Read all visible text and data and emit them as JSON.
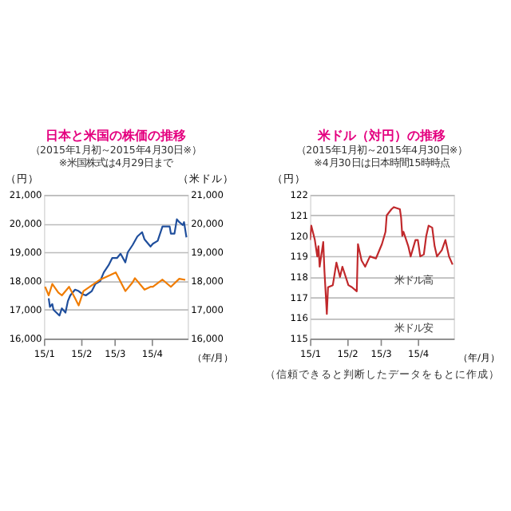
{
  "chart_data": [
    {
      "type": "line",
      "title": "日本と米国の株価の推移",
      "subtitle": "（2015年1月初～2015年4月30日※）",
      "annotations": [
        "※米国株式は4月29日まで"
      ],
      "ylabel": "（円）",
      "y2label": "（米ドル）",
      "xlabel": "（年/月）",
      "grid": "y",
      "xlim": [
        "2015-01-01",
        "2015-05-01"
      ],
      "xticks": [
        {
          "value": "2015-01-01",
          "label": "15/1"
        },
        {
          "value": "2015-02-01",
          "label": "15/2"
        },
        {
          "value": "2015-03-01",
          "label": "15/3"
        },
        {
          "value": "2015-04-01",
          "label": "15/4"
        }
      ],
      "ylim": [
        16000,
        21000
      ],
      "yticks": [
        {
          "value": 16000,
          "label": "16,000"
        },
        {
          "value": 17000,
          "label": "17,000"
        },
        {
          "value": 18000,
          "label": "18,000"
        },
        {
          "value": 19000,
          "label": "19,000"
        },
        {
          "value": 20000,
          "label": "20,000"
        },
        {
          "value": 21000,
          "label": "21,000"
        }
      ],
      "y2lim": [
        16000,
        21000
      ],
      "y2ticks": [
        {
          "value": 16000,
          "label": "16,000"
        },
        {
          "value": 17000,
          "label": "17,000"
        },
        {
          "value": 18000,
          "label": "18,000"
        },
        {
          "value": 19000,
          "label": "19,000"
        },
        {
          "value": 20000,
          "label": "20,000"
        },
        {
          "value": 21000,
          "label": "21,000"
        }
      ],
      "series": [
        {
          "color": "#1f4e9c",
          "x": [
            "2015-01-05",
            "2015-01-06",
            "2015-01-08",
            "2015-01-09",
            "2015-01-14",
            "2015-01-16",
            "2015-01-19",
            "2015-01-21",
            "2015-01-23",
            "2015-01-27",
            "2015-01-30",
            "2015-02-02",
            "2015-02-05",
            "2015-02-10",
            "2015-02-13",
            "2015-02-17",
            "2015-02-20",
            "2015-02-24",
            "2015-02-27",
            "2015-03-03",
            "2015-03-06",
            "2015-03-10",
            "2015-03-12",
            "2015-03-16",
            "2015-03-20",
            "2015-03-24",
            "2015-03-26",
            "2015-03-31",
            "2015-04-02",
            "2015-04-06",
            "2015-04-10",
            "2015-04-14",
            "2015-04-16",
            "2015-04-17",
            "2015-04-20",
            "2015-04-22",
            "2015-04-24",
            "2015-04-27",
            "2015-04-28",
            "2015-04-30"
          ],
          "values": [
            17400,
            17100,
            17200,
            17000,
            16800,
            17050,
            16900,
            17300,
            17500,
            17700,
            17650,
            17550,
            17500,
            17650,
            17900,
            18000,
            18300,
            18550,
            18800,
            18800,
            18950,
            18650,
            19000,
            19250,
            19550,
            19700,
            19450,
            19200,
            19300,
            19400,
            19900,
            19900,
            19900,
            19650,
            19650,
            20150,
            20050,
            19950,
            20050,
            19520
          ]
        },
        {
          "color": "#f07c00",
          "axis": "y2",
          "x": [
            "2015-01-02",
            "2015-01-05",
            "2015-01-08",
            "2015-01-13",
            "2015-01-16",
            "2015-01-22",
            "2015-01-27",
            "2015-01-30",
            "2015-02-03",
            "2015-02-10",
            "2015-02-17",
            "2015-02-25",
            "2015-03-02",
            "2015-03-10",
            "2015-03-16",
            "2015-03-18",
            "2015-03-26",
            "2015-03-31",
            "2015-04-02",
            "2015-04-10",
            "2015-04-17",
            "2015-04-24",
            "2015-04-29"
          ],
          "values": [
            17800,
            17500,
            17900,
            17600,
            17500,
            17800,
            17400,
            17150,
            17650,
            17850,
            18050,
            18200,
            18300,
            17650,
            17950,
            18100,
            17700,
            17800,
            17800,
            18050,
            17800,
            18080,
            18040
          ]
        }
      ]
    },
    {
      "type": "line",
      "title": "米ドル（対円）の推移",
      "subtitle": "（2015年1月初～2015年4月30日※）",
      "annotations": [
        "※4月30日は日本時間15時時点",
        "米ドル高",
        "米ドル安",
        "（信頼できると判断したデータをもとに作成）"
      ],
      "ylabel": "（円）",
      "xlabel": "（年/月）",
      "grid": "y",
      "xlim": [
        "2015-01-01",
        "2015-05-01"
      ],
      "xticks": [
        {
          "value": "2015-01-01",
          "label": "15/1"
        },
        {
          "value": "2015-02-01",
          "label": "15/2"
        },
        {
          "value": "2015-03-01",
          "label": "15/3"
        },
        {
          "value": "2015-04-01",
          "label": "15/4"
        }
      ],
      "ylim": [
        115,
        122
      ],
      "yticks": [
        115,
        116,
        117,
        118,
        119,
        120,
        121,
        122
      ],
      "series": [
        {
          "color": "#c0282b",
          "x": [
            "2015-01-01",
            "2015-01-02",
            "2015-01-05",
            "2015-01-07",
            "2015-01-08",
            "2015-01-09",
            "2015-01-12",
            "2015-01-13",
            "2015-01-15",
            "2015-01-16",
            "2015-01-20",
            "2015-01-23",
            "2015-01-26",
            "2015-01-28",
            "2015-02-02",
            "2015-02-05",
            "2015-02-09",
            "2015-02-10",
            "2015-02-13",
            "2015-02-16",
            "2015-02-20",
            "2015-02-25",
            "2015-03-02",
            "2015-03-04",
            "2015-03-05",
            "2015-03-06",
            "2015-03-10",
            "2015-03-12",
            "2015-03-17",
            "2015-03-18",
            "2015-03-19",
            "2015-03-20",
            "2015-03-24",
            "2015-03-26",
            "2015-03-30",
            "2015-04-01",
            "2015-04-03",
            "2015-04-06",
            "2015-04-08",
            "2015-04-10",
            "2015-04-13",
            "2015-04-15",
            "2015-04-17",
            "2015-04-21",
            "2015-04-24",
            "2015-04-27",
            "2015-04-30"
          ],
          "values": [
            119.8,
            120.5,
            119.8,
            119,
            119.5,
            118.5,
            119.7,
            118.3,
            116.2,
            117.5,
            117.6,
            118.7,
            118,
            118.5,
            117.6,
            117.5,
            117.3,
            119.6,
            118.8,
            118.5,
            119,
            118.9,
            119.6,
            120,
            120.2,
            121,
            121.3,
            121.4,
            121.3,
            120.9,
            120,
            120.2,
            119.5,
            119,
            119.8,
            119.8,
            119,
            119.1,
            120,
            120.5,
            120.4,
            119.5,
            119,
            119.3,
            119.8,
            119,
            118.6
          ]
        }
      ]
    }
  ]
}
